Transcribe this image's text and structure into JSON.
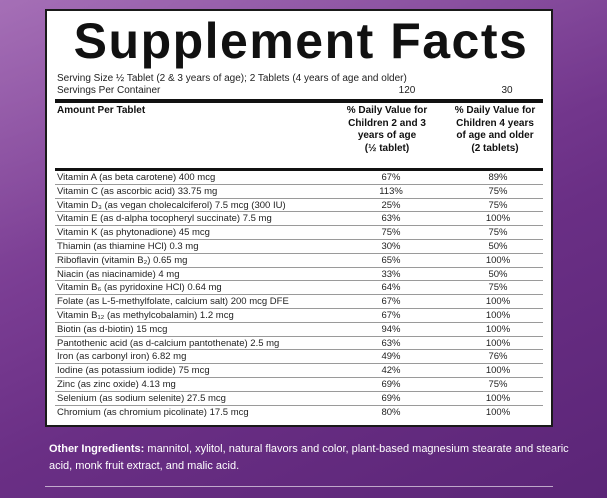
{
  "panel": {
    "title": "Supplement Facts",
    "serving_size": "Serving Size ½ Tablet (2 & 3 years of age); 2 Tablets (4 years of age and older)",
    "servings_label": "Servings Per Container",
    "servings_values": [
      "120",
      "30"
    ],
    "header": {
      "amount": "Amount Per Tablet",
      "col1": [
        "% Daily Value for",
        "Children 2 and 3",
        "years of age",
        "(½ tablet)"
      ],
      "col2": [
        "% Daily Value for",
        "Children 4 years",
        "of age and older",
        "(2 tablets)"
      ]
    },
    "rows": [
      {
        "name": "Vitamin A (as beta carotene) 400 mcg",
        "dv1": "67%",
        "dv2": "89%"
      },
      {
        "name": "Vitamin C (as ascorbic acid) 33.75 mg",
        "dv1": "113%",
        "dv2": "75%"
      },
      {
        "name": "Vitamin D₃ (as vegan cholecalciferol) 7.5 mcg (300 IU)",
        "dv1": "25%",
        "dv2": "75%"
      },
      {
        "name": "Vitamin E (as d-alpha tocopheryl succinate) 7.5 mg",
        "dv1": "63%",
        "dv2": "100%"
      },
      {
        "name": "Vitamin K (as phytonadione) 45 mcg",
        "dv1": "75%",
        "dv2": "75%"
      },
      {
        "name": "Thiamin (as thiamine HCl) 0.3 mg",
        "dv1": "30%",
        "dv2": "50%"
      },
      {
        "name": "Riboflavin (vitamin B₂) 0.65 mg",
        "dv1": "65%",
        "dv2": "100%"
      },
      {
        "name": "Niacin (as niacinamide) 4 mg",
        "dv1": "33%",
        "dv2": "50%"
      },
      {
        "name": "Vitamin B₆ (as pyridoxine HCl) 0.64 mg",
        "dv1": "64%",
        "dv2": "75%"
      },
      {
        "name": "Folate (as L-5-methylfolate, calcium salt) 200 mcg DFE",
        "dv1": "67%",
        "dv2": "100%"
      },
      {
        "name": "Vitamin B₁₂ (as methylcobalamin) 1.2 mcg",
        "dv1": "67%",
        "dv2": "100%"
      },
      {
        "name": "Biotin (as d-biotin) 15 mcg",
        "dv1": "94%",
        "dv2": "100%"
      },
      {
        "name": "Pantothenic acid (as d-calcium pantothenate) 2.5 mg",
        "dv1": "63%",
        "dv2": "100%"
      },
      {
        "name": "Iron (as carbonyl iron) 6.82 mg",
        "dv1": "49%",
        "dv2": "76%"
      },
      {
        "name": "Iodine (as potassium iodide) 75 mcg",
        "dv1": "42%",
        "dv2": "100%"
      },
      {
        "name": "Zinc (as zinc oxide) 4.13 mg",
        "dv1": "69%",
        "dv2": "75%"
      },
      {
        "name": "Selenium (as sodium selenite) 27.5 mcg",
        "dv1": "69%",
        "dv2": "100%"
      },
      {
        "name": "Chromium (as chromium picolinate) 17.5 mcg",
        "dv1": "80%",
        "dv2": "100%"
      }
    ]
  },
  "other_ingredients": {
    "label": "Other Ingredients:",
    "text": " mannitol, xylitol, natural flavors and color, plant-based magnesium stearate and stearic acid, monk fruit extract, and malic acid."
  },
  "colors": {
    "background": "#7a3d93",
    "panel": "#ffffff",
    "text": "#111111"
  }
}
